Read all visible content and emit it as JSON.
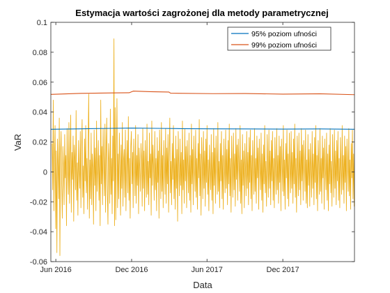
{
  "chart_data": {
    "type": "line",
    "title": "Estymacja wartości zagrożonej dla metody parametrycznej",
    "xlabel": "Data",
    "ylabel": "VaR",
    "xlim": [
      "2016-05-20",
      "2018-05-23"
    ],
    "ylim": [
      -0.06,
      0.1
    ],
    "yticks": [
      -0.06,
      -0.04,
      -0.02,
      0,
      0.02,
      0.04,
      0.06,
      0.08,
      0.1
    ],
    "ytick_labels": [
      "-0.06",
      "-0.04",
      "-0.02",
      "0",
      "0.02",
      "0.04",
      "0.06",
      "0.08",
      "0.1"
    ],
    "xticks": [
      "2016-06-01",
      "2016-12-01",
      "2017-06-01",
      "2017-12-01"
    ],
    "xtick_labels": [
      "Jun 2016",
      "Dec 2016",
      "Jun 2017",
      "Dec 2017"
    ],
    "grid": false,
    "legend_position": "top-right",
    "colors": {
      "var95": "#0072BD",
      "var99": "#D95319",
      "returns": "#EDB120"
    },
    "series": [
      {
        "name": "95% poziom ufności",
        "color": "#0072BD",
        "x": [
          "2016-05-20",
          "2016-08-01",
          "2016-10-15",
          "2016-12-01",
          "2017-02-01",
          "2017-04-01",
          "2017-06-15",
          "2017-09-01",
          "2017-12-01",
          "2018-03-01",
          "2018-05-23"
        ],
        "y": [
          0.0285,
          0.0288,
          0.0291,
          0.0293,
          0.0291,
          0.0289,
          0.0288,
          0.0287,
          0.0286,
          0.0287,
          0.0285
        ]
      },
      {
        "name": "99% poziom ufności",
        "color": "#D95319",
        "x": [
          "2016-05-20",
          "2016-08-01",
          "2016-10-15",
          "2016-11-25",
          "2016-12-05",
          "2017-01-15",
          "2017-03-01",
          "2017-03-05",
          "2017-06-15",
          "2017-09-01",
          "2017-12-01",
          "2018-03-01",
          "2018-05-23"
        ],
        "y": [
          0.0518,
          0.0525,
          0.0528,
          0.0529,
          0.054,
          0.0536,
          0.0534,
          0.0526,
          0.0523,
          0.0524,
          0.052,
          0.0522,
          0.0516
        ]
      },
      {
        "color": "#EDB120",
        "x_start": "2016-05-23",
        "step_days": 1.45,
        "y": [
          0.019,
          -0.012,
          0.048,
          -0.026,
          0.008,
          0.031,
          -0.038,
          0.014,
          -0.054,
          0.022,
          0.004,
          -0.018,
          0.036,
          -0.056,
          0.012,
          0.027,
          -0.009,
          -0.031,
          0.017,
          0.003,
          -0.022,
          0.025,
          -0.004,
          0.011,
          -0.036,
          0.029,
          0.002,
          -0.015,
          0.033,
          -0.021,
          0.007,
          0.038,
          -0.027,
          0.013,
          -0.005,
          0.024,
          -0.033,
          0.018,
          0.009,
          -0.012,
          0.041,
          -0.019,
          0.006,
          -0.029,
          0.021,
          0.001,
          -0.011,
          0.027,
          -0.024,
          0.015,
          0.035,
          -0.017,
          0.004,
          -0.028,
          0.022,
          -0.006,
          0.031,
          -0.014,
          0.009,
          -0.025,
          0.019,
          0.052,
          -0.031,
          0.008,
          -0.018,
          0.026,
          -0.022,
          0.012,
          0.003,
          -0.035,
          0.028,
          -0.009,
          0.016,
          -0.026,
          0.034,
          -0.013,
          0.002,
          0.021,
          -0.019,
          0.011,
          -0.036,
          0.048,
          -0.008,
          0.017,
          -0.022,
          0.029,
          0.005,
          -0.016,
          0.032,
          -0.027,
          0.013,
          0.036,
          -0.012,
          -0.035,
          0.019,
          0.007,
          -0.021,
          0.042,
          -0.015,
          0.009,
          -0.028,
          0.024,
          -0.006,
          0.089,
          -0.036,
          0.043,
          -0.032,
          0.015,
          0.049,
          -0.024,
          0.012,
          -0.018,
          0.026,
          0.004,
          -0.029,
          0.018,
          -0.011,
          0.033,
          -0.023,
          0.008,
          0.015,
          -0.017,
          0.028,
          -0.026,
          0.004,
          0.021,
          -0.014,
          0.037,
          -0.019,
          0.009,
          -0.031,
          0.017,
          0.027,
          -0.008,
          0.013,
          -0.024,
          0.022,
          0.006,
          -0.016,
          0.031,
          -0.021,
          0.011,
          -0.009,
          0.025,
          -0.028,
          0.016,
          0.002,
          -0.013,
          0.019,
          0.008,
          -0.023,
          0.029,
          -0.011,
          0.014,
          -0.026,
          0.021,
          0.005,
          -0.017,
          0.032,
          -0.015,
          0.007,
          -0.022,
          0.026,
          -0.004,
          0.012,
          -0.029,
          0.034,
          -0.009,
          0.018,
          0.003,
          -0.019,
          0.027,
          -0.012,
          0.009,
          -0.026,
          0.023,
          -0.007,
          0.014,
          -0.031,
          0.028,
          0.004,
          -0.018,
          0.033,
          -0.013,
          0.011,
          -0.024,
          0.021,
          0.006,
          -0.015,
          0.029,
          -0.021,
          0.016,
          -0.008,
          0.025,
          -0.027,
          0.012,
          0.036,
          -0.014,
          0.007,
          -0.022,
          0.019,
          -0.005,
          0.031,
          -0.018,
          0.009,
          -0.025,
          0.024,
          -0.011,
          0.015,
          -0.033,
          0.027,
          0.002,
          -0.016,
          0.022,
          -0.009,
          0.013,
          -0.028,
          0.034,
          -0.012,
          0.008,
          -0.021,
          0.029,
          -0.006,
          0.017,
          -0.024,
          0.021,
          0.004,
          -0.014,
          0.026,
          -0.019,
          0.011,
          -0.027,
          0.032,
          -0.008,
          0.015,
          -0.022,
          0.024,
          0.003,
          -0.013,
          0.028,
          -0.017,
          0.009,
          -0.025,
          0.019,
          -0.004,
          0.035,
          -0.016,
          0.012,
          -0.029,
          0.023,
          0.006,
          -0.018,
          0.027,
          -0.011,
          0.014,
          -0.023,
          0.022,
          -0.007,
          0.031,
          -0.015,
          0.008,
          -0.026,
          0.018,
          0.002,
          -0.012,
          0.025,
          -0.019,
          0.013,
          -0.028,
          0.029,
          -0.009,
          0.016,
          -0.021,
          0.024,
          0.005,
          -0.015,
          0.033,
          -0.013,
          0.007,
          -0.024,
          0.019,
          -0.006,
          0.027,
          -0.018,
          0.011,
          -0.025,
          0.022,
          0.003,
          -0.014,
          0.028,
          -0.011,
          0.015,
          -0.022,
          0.021,
          -0.008,
          0.032,
          -0.016,
          0.009,
          -0.027,
          0.024,
          0.004,
          -0.017,
          0.026,
          -0.012,
          0.012,
          -0.023,
          0.029,
          -0.005,
          0.018,
          -0.019,
          0.022,
          0.006,
          -0.013,
          0.031,
          -0.021,
          0.008,
          -0.028,
          0.025,
          -0.009,
          0.014,
          -0.024,
          0.019,
          0.002,
          -0.016,
          0.027,
          -0.011,
          0.013,
          -0.022,
          0.023,
          -0.007,
          0.028,
          -0.018,
          0.011,
          -0.026,
          0.021,
          0.005,
          -0.015,
          0.029,
          -0.013,
          0.009,
          -0.021,
          0.024,
          -0.004,
          0.016,
          -0.025,
          0.022,
          0.003,
          -0.012,
          0.026,
          -0.019,
          0.012,
          -0.027,
          0.018,
          -0.008,
          0.031,
          -0.014,
          0.007,
          -0.023,
          0.025,
          0.004,
          -0.017,
          0.028,
          -0.011,
          0.014,
          -0.022,
          0.021,
          -0.006,
          0.027,
          -0.019,
          0.009,
          -0.024,
          0.023,
          0.002,
          -0.015,
          0.029,
          -0.012,
          0.011,
          -0.021,
          0.024,
          -0.007,
          0.017,
          -0.026,
          0.022,
          0.005,
          -0.013,
          0.031,
          -0.016,
          0.008,
          -0.025,
          0.019,
          -0.004,
          0.028,
          -0.018,
          0.012,
          -0.023,
          0.026,
          0.003,
          -0.014,
          0.027,
          -0.011,
          0.013,
          -0.021,
          0.022,
          -0.008,
          0.032,
          -0.017,
          0.009,
          -0.027,
          0.024,
          0.004,
          -0.016,
          0.026,
          -0.012,
          0.014,
          -0.022,
          0.029,
          -0.006,
          0.018,
          -0.019,
          0.021,
          0.006,
          -0.013,
          0.028,
          -0.021,
          0.008,
          -0.024,
          0.025,
          -0.009,
          0.015,
          -0.023,
          0.019,
          0.002,
          -0.017,
          0.027,
          -0.011,
          0.012,
          -0.022,
          0.023,
          -0.007,
          0.031,
          -0.018,
          0.011,
          -0.026,
          0.021,
          0.005,
          -0.015,
          0.029,
          -0.013,
          0.009,
          -0.021,
          0.024,
          -0.004,
          0.016,
          -0.025,
          0.022,
          0.003,
          -0.012,
          0.026,
          -0.019,
          0.012,
          -0.026,
          0.018,
          -0.008,
          0.029,
          -0.014,
          0.007,
          -0.023,
          0.025,
          0.004,
          -0.017,
          0.028,
          -0.011,
          0.014,
          -0.022,
          0.021,
          -0.006,
          0.027,
          -0.019,
          0.009,
          -0.024,
          0.023,
          0.002,
          -0.015,
          0.031,
          -0.012,
          0.011,
          -0.021,
          0.024,
          -0.007,
          0.017,
          -0.026,
          0.022,
          0.005,
          -0.013,
          0.029,
          -0.016,
          0.008,
          -0.025,
          0.019,
          -0.004,
          0.028,
          -0.018,
          0.012,
          -0.023,
          0.026,
          0.003,
          -0.014,
          0.027,
          -0.011,
          0.013,
          -0.021,
          0.022,
          -0.008,
          0.031,
          -0.017,
          0.009,
          -0.027,
          0.024,
          0.004,
          -0.016,
          0.014,
          0.003,
          0.012,
          -0.009,
          0.015
        ]
      }
    ]
  }
}
